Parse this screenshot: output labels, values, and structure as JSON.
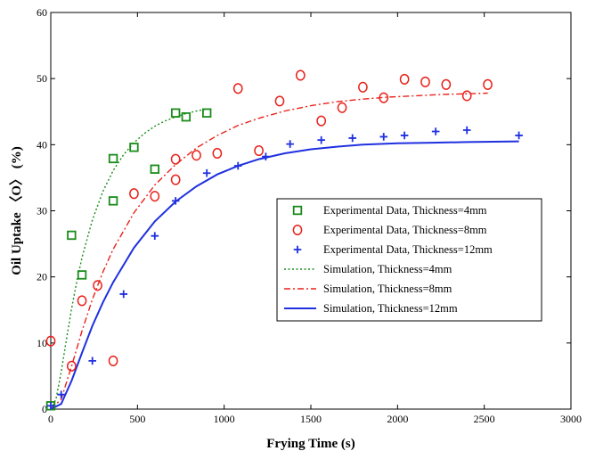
{
  "chart_data": {
    "type": "scatter",
    "xlabel": "Frying Time (s)",
    "ylabel": "Oil Uptake 〈O〉 (%)",
    "xlim": [
      0,
      3000
    ],
    "ylim": [
      0,
      60
    ],
    "xticks": [
      0,
      500,
      1000,
      1500,
      2000,
      2500,
      3000
    ],
    "yticks": [
      0,
      10,
      20,
      30,
      40,
      50,
      60
    ],
    "grid": false,
    "legend_position": "center-right",
    "series": [
      {
        "name": "Experimental Data, Thickness=4mm",
        "kind": "scatter",
        "marker": "square",
        "color": "#1a8c1a",
        "x": [
          0,
          120,
          180,
          360,
          360,
          480,
          600,
          720,
          780,
          900
        ],
        "y": [
          0.5,
          26.3,
          20.3,
          31.5,
          37.9,
          39.6,
          36.3,
          44.8,
          44.2,
          44.8
        ]
      },
      {
        "name": "Experimental Data, Thickness=8mm",
        "kind": "scatter",
        "marker": "circle",
        "color": "#e8221b",
        "x": [
          0,
          120,
          180,
          270,
          360,
          480,
          600,
          720,
          720,
          840,
          960,
          1080,
          1200,
          1320,
          1440,
          1560,
          1680,
          1800,
          1920,
          2040,
          2160,
          2280,
          2400,
          2520
        ],
        "y": [
          10.3,
          6.5,
          16.4,
          18.7,
          7.3,
          32.6,
          32.2,
          34.7,
          37.8,
          38.4,
          38.7,
          48.5,
          39.1,
          46.6,
          50.5,
          43.6,
          45.6,
          48.7,
          47.1,
          49.9,
          49.5,
          49.1,
          47.4,
          49.1
        ]
      },
      {
        "name": "Experimental Data, Thickness=12mm",
        "kind": "scatter",
        "marker": "plus",
        "color": "#1f30e0",
        "x": [
          0,
          60,
          240,
          420,
          600,
          720,
          900,
          1080,
          1240,
          1380,
          1560,
          1740,
          1920,
          2040,
          2220,
          2400,
          2700
        ],
        "y": [
          0.5,
          2.2,
          7.3,
          17.4,
          26.2,
          31.5,
          35.7,
          36.8,
          38.2,
          40.1,
          40.7,
          41.0,
          41.2,
          41.4,
          42.0,
          42.2,
          41.4
        ]
      },
      {
        "name": "Simulation, Thickness=4mm",
        "kind": "line",
        "style": "dotted",
        "color": "#1a8c1a",
        "x": [
          0,
          30,
          60,
          90,
          120,
          150,
          180,
          240,
          300,
          360,
          420,
          480,
          540,
          600,
          660,
          720,
          780,
          840,
          900
        ],
        "y": [
          0,
          1.5,
          5.6,
          10.5,
          15.2,
          19.3,
          22.9,
          28.6,
          32.9,
          36.1,
          38.5,
          40.3,
          41.7,
          42.8,
          43.6,
          44.2,
          44.7,
          45.1,
          45.4
        ]
      },
      {
        "name": "Simulation, Thickness=8mm",
        "kind": "line",
        "style": "dashdot",
        "color": "#e8221b",
        "x": [
          0,
          60,
          120,
          180,
          240,
          300,
          360,
          480,
          600,
          720,
          840,
          960,
          1080,
          1200,
          1350,
          1500,
          1650,
          1800,
          1950,
          2100,
          2250,
          2400,
          2520
        ],
        "y": [
          0,
          1.5,
          6.5,
          11.8,
          16.6,
          20.7,
          24.2,
          29.7,
          33.9,
          37.0,
          39.5,
          41.4,
          42.9,
          44.0,
          45.1,
          45.9,
          46.5,
          46.9,
          47.2,
          47.4,
          47.6,
          47.7,
          47.8
        ]
      },
      {
        "name": "Simulation, Thickness=12mm",
        "kind": "line",
        "style": "solid",
        "color": "#1f30e0",
        "x": [
          0,
          60,
          120,
          180,
          240,
          300,
          360,
          480,
          600,
          720,
          840,
          960,
          1080,
          1200,
          1350,
          1500,
          1650,
          1800,
          2000,
          2200,
          2400,
          2700
        ],
        "y": [
          0,
          0.8,
          4.3,
          8.5,
          12.6,
          16.1,
          19.2,
          24.4,
          28.4,
          31.4,
          33.7,
          35.5,
          36.8,
          37.8,
          38.7,
          39.3,
          39.7,
          40.0,
          40.2,
          40.3,
          40.4,
          40.5
        ]
      }
    ]
  }
}
